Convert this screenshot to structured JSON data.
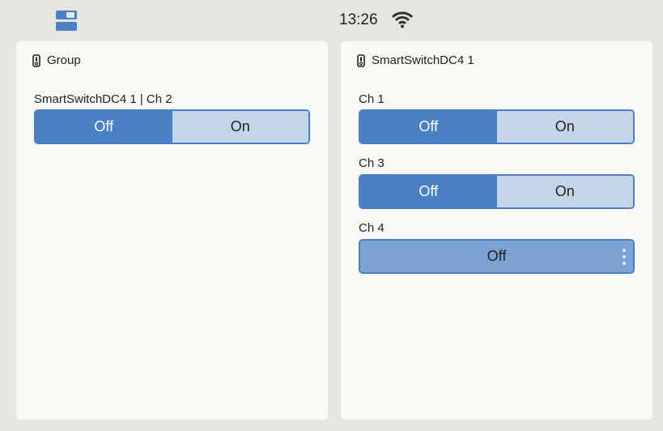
{
  "status": {
    "time": "13:26",
    "wifi_icon": "wifi-icon"
  },
  "accent": "#4a7fc3",
  "cards": [
    {
      "title": "Group",
      "icon": "switch-device-icon",
      "controls": [
        {
          "label": "SmartSwitchDC4 1 | Ch 2",
          "options": [
            "Off",
            "On"
          ],
          "selected": "Off"
        }
      ]
    },
    {
      "title": "SmartSwitchDC4 1",
      "icon": "switch-device-icon",
      "controls": [
        {
          "label": "Ch 1",
          "options": [
            "Off",
            "On"
          ],
          "selected": "Off"
        },
        {
          "label": "Ch 3",
          "options": [
            "Off",
            "On"
          ],
          "selected": "Off"
        },
        {
          "label": "Ch 4",
          "value": "Off"
        }
      ]
    }
  ]
}
